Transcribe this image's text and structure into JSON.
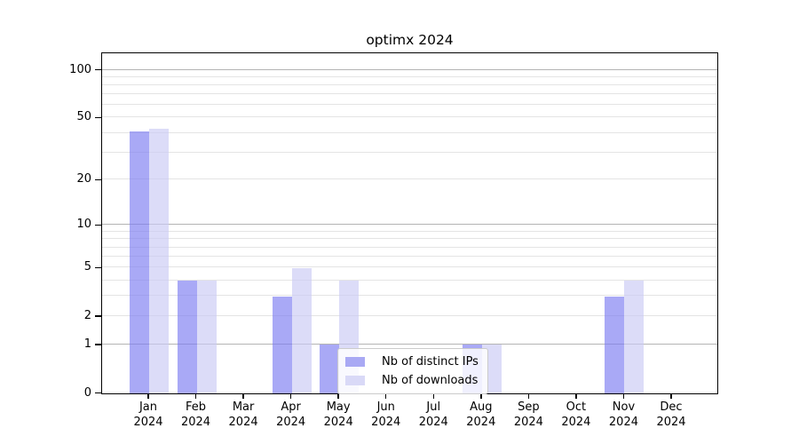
{
  "title": "optimx 2024",
  "chart_data": {
    "type": "bar",
    "title": "optimx 2024",
    "x_months": [
      "Jan",
      "Feb",
      "Mar",
      "Apr",
      "May",
      "Jun",
      "Jul",
      "Aug",
      "Sep",
      "Oct",
      "Nov",
      "Dec"
    ],
    "x_year": "2024",
    "series": [
      {
        "name": "Nb of distinct IPs",
        "values": [
          41,
          4,
          0,
          3,
          1,
          0,
          0,
          1,
          0,
          0,
          3,
          0
        ]
      },
      {
        "name": "Nb of downloads",
        "values": [
          43,
          4,
          0,
          5,
          4,
          0,
          0,
          1,
          0,
          0,
          4,
          0
        ]
      }
    ],
    "y_scale": "log1p",
    "y_ticks": [
      0,
      1,
      2,
      5,
      10,
      20,
      50,
      100
    ],
    "y_gridlines_minor": [
      2,
      3,
      4,
      5,
      6,
      7,
      8,
      9,
      20,
      30,
      40,
      50,
      60,
      70,
      80,
      90
    ],
    "y_gridlines_major": [
      1,
      10,
      100
    ],
    "ylim": [
      0,
      126
    ],
    "grid": true,
    "legend_position": "bottom-center",
    "colors": {
      "bar_ips": "rgba(125,125,241,0.66)",
      "bar_downloads": "rgba(202,202,245,0.66)",
      "swatch_ips": "#a9a9f4",
      "swatch_downloads": "#d9d9f7",
      "grid_minor": "#e4e4e4",
      "grid_major": "#b4b4b4",
      "axis": "#000000"
    }
  }
}
